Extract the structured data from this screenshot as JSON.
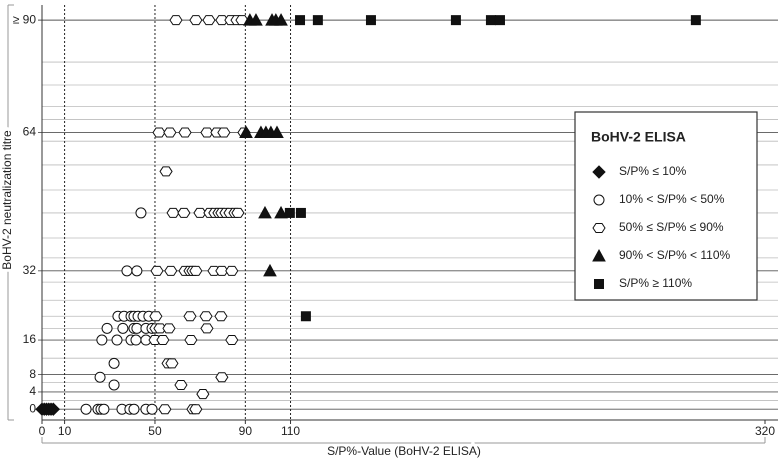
{
  "chart_data": {
    "type": "scatter",
    "y_label": "BoHV-2 neutralization titre",
    "x_label": "S/P%-Value (BoHV-2 ELISA)",
    "legend_title": "BoHV-2 ELISA",
    "legend_position": "right",
    "xlim": [
      0,
      320
    ],
    "ylim": [
      -2.5,
      93.5
    ],
    "xticks": [
      0,
      10,
      50,
      90,
      110,
      320
    ],
    "x_dotted_lines": [
      10,
      50,
      90,
      110
    ],
    "yticks": [
      0,
      4,
      8,
      16,
      32,
      64,
      {
        "value": 90,
        "label": "≥ 90"
      }
    ],
    "y_minor_grid": [
      2,
      6.2,
      11.8,
      18.7,
      21.5,
      25.2,
      29.4,
      35,
      39.6,
      45.4,
      50.7,
      56.5,
      62,
      67,
      70,
      75,
      80.3
    ],
    "series": [
      {
        "name": "S/P% ≤ 10%",
        "marker": "diamond",
        "color": "#111",
        "x": [
          0,
          1,
          2,
          3,
          4,
          5
        ],
        "values": [
          0,
          0,
          0,
          0,
          0,
          0
        ]
      },
      {
        "name": "10% < S/P% < 50%",
        "marker": "circle",
        "color": "#fff",
        "x": [
          19.5,
          24.8,
          26.1,
          27.4,
          35.4,
          38.9,
          40.7,
          46,
          48.7,
          31.9,
          25.7,
          31.9,
          26.5,
          33.2,
          39.4,
          41.6,
          46,
          28.8,
          35.8,
          40.7,
          42,
          46,
          48.7,
          33.6,
          36.3,
          39.4,
          40.7,
          42.5,
          44.7,
          47.3,
          37.6,
          42,
          43.8
        ],
        "values": [
          0,
          0,
          0,
          0,
          0,
          0,
          0,
          0,
          0,
          5.6,
          7.4,
          10.6,
          16,
          16,
          16,
          16,
          16,
          18.7,
          18.7,
          18.7,
          18.7,
          18.7,
          18.7,
          21.5,
          21.5,
          21.5,
          21.5,
          21.5,
          21.5,
          21.5,
          32,
          32,
          45.4
        ]
      },
      {
        "name": "50% ≤ S/P% ≤ 90%",
        "marker": "hexagon",
        "color": "#fff",
        "x": [
          54.4,
          66.8,
          68.1,
          71.2,
          61.5,
          79.6,
          55.8,
          57.5,
          50,
          53.5,
          65.9,
          84,
          50.4,
          52.2,
          56.2,
          73,
          50.4,
          65.5,
          72.6,
          79.2,
          50.9,
          57,
          63.3,
          65.5,
          66.8,
          68.1,
          76.1,
          79.6,
          84,
          58,
          62.8,
          69.9,
          74.3,
          76.5,
          78.3,
          79.6,
          81.4,
          83.2,
          85.4,
          86.7,
          54.9,
          51.8,
          56.6,
          63.3,
          73,
          77.4,
          80.5,
          89.4,
          59.3,
          68.1,
          73.9,
          79.6,
          83.6,
          86.3,
          88.5
        ],
        "values": [
          0,
          0,
          0,
          3.5,
          5.6,
          7.4,
          10.6,
          10.6,
          16,
          16,
          16,
          16,
          18.7,
          18.7,
          18.7,
          18.7,
          21.5,
          21.5,
          21.5,
          21.5,
          32,
          32,
          32,
          32,
          32,
          32,
          32,
          32,
          32,
          45.4,
          45.4,
          45.4,
          45.4,
          45.4,
          45.4,
          45.4,
          45.4,
          45.4,
          45.4,
          45.4,
          55,
          64,
          64,
          64,
          64,
          64,
          64,
          64,
          90,
          90,
          90,
          90,
          90,
          90,
          90
        ]
      },
      {
        "name": "90% < S/P% < 110%",
        "marker": "triangle",
        "color": "#111",
        "x": [
          92,
          94.7,
          101.8,
          103.5,
          105.8,
          90.3,
          96.9,
          99.1,
          101.3,
          104,
          98.7,
          105.8,
          100.9
        ],
        "values": [
          90,
          90,
          90,
          90,
          90,
          64,
          64,
          64,
          64,
          64,
          45.4,
          45.4,
          32
        ]
      },
      {
        "name": "S/P% ≥ 110%",
        "marker": "square",
        "color": "#111",
        "x": [
          114.2,
          122.1,
          145.6,
          183.2,
          198.7,
          202.7,
          289.4,
          109.7,
          114.6,
          116.8
        ],
        "values": [
          90,
          90,
          90,
          90,
          90,
          90,
          90,
          45.4,
          45.4,
          21.5
        ]
      }
    ]
  }
}
